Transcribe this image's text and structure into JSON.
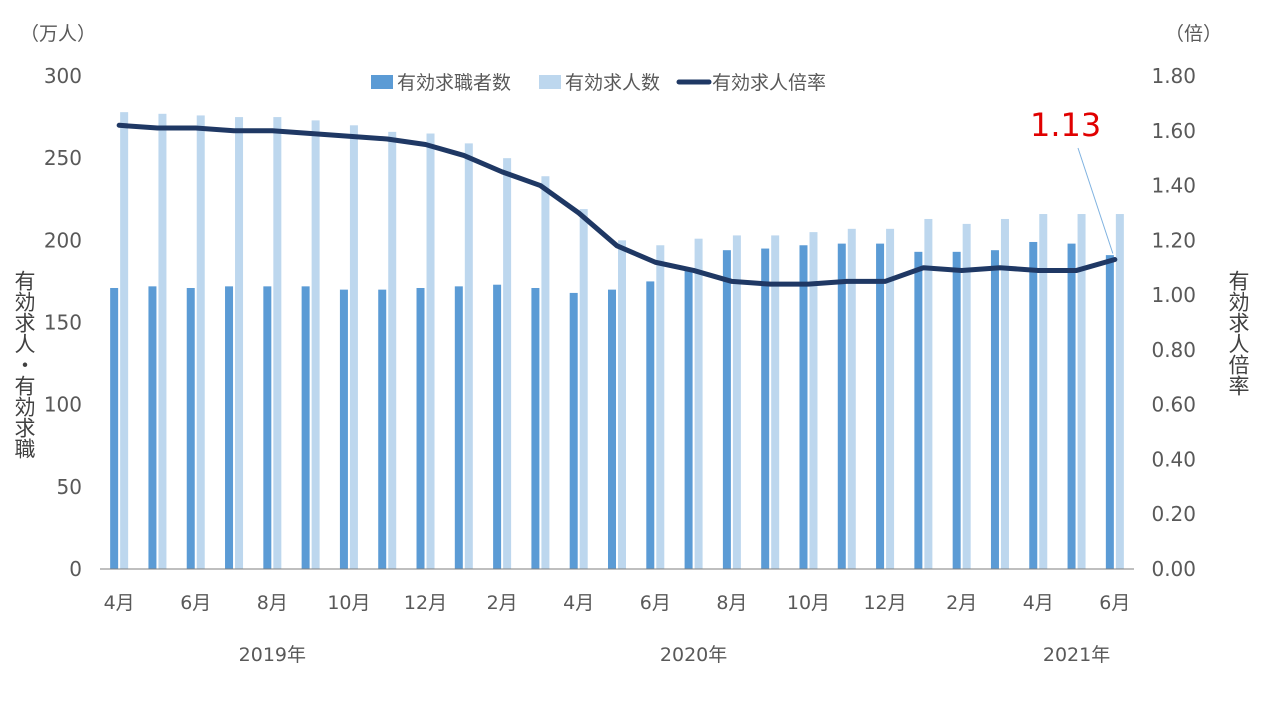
{
  "chart_data": {
    "type": "bar",
    "categories": [
      "4月",
      "5月",
      "6月",
      "7月",
      "8月",
      "9月",
      "10月",
      "11月",
      "12月",
      "1月",
      "2月",
      "3月",
      "4月",
      "5月",
      "6月",
      "7月",
      "8月",
      "9月",
      "10月",
      "11月",
      "12月",
      "1月",
      "2月",
      "3月",
      "4月",
      "5月",
      "6月"
    ],
    "x_tick_labels": [
      "4月",
      "6月",
      "8月",
      "10月",
      "12月",
      "2月",
      "4月",
      "6月",
      "8月",
      "10月",
      "12月",
      "2月",
      "4月",
      "6月"
    ],
    "year_labels": [
      "2019年",
      "2020年",
      "2021年"
    ],
    "series": [
      {
        "name": "有効求職者数",
        "type": "bar",
        "axis": "left",
        "color": "#5b9bd5",
        "values": [
          171,
          172,
          171,
          172,
          172,
          172,
          170,
          170,
          171,
          172,
          173,
          171,
          168,
          170,
          175,
          183,
          194,
          195,
          197,
          198,
          198,
          193,
          193,
          194,
          199,
          198,
          191
        ]
      },
      {
        "name": "有効求人数",
        "type": "bar",
        "axis": "left",
        "color": "#bdd7ee",
        "values": [
          278,
          277,
          276,
          275,
          275,
          273,
          270,
          266,
          265,
          259,
          250,
          239,
          219,
          200,
          197,
          201,
          203,
          203,
          205,
          207,
          207,
          213,
          210,
          213,
          216,
          216,
          216
        ]
      },
      {
        "name": "有効求人倍率",
        "type": "line",
        "axis": "right",
        "color": "#1f3864",
        "values": [
          1.62,
          1.61,
          1.61,
          1.6,
          1.6,
          1.59,
          1.58,
          1.57,
          1.55,
          1.51,
          1.45,
          1.4,
          1.3,
          1.18,
          1.12,
          1.09,
          1.05,
          1.04,
          1.04,
          1.05,
          1.05,
          1.1,
          1.09,
          1.1,
          1.09,
          1.09,
          1.13
        ]
      }
    ],
    "y_left": {
      "label": "有効求人・有効求職",
      "unit": "（万人）",
      "ticks": [
        "300",
        "250",
        "200",
        "150",
        "100",
        "50",
        "0"
      ],
      "ylim": [
        0,
        300
      ]
    },
    "y_right": {
      "label": "有効求人倍率",
      "unit": "（倍）",
      "ticks": [
        "1.80",
        "1.60",
        "1.40",
        "1.20",
        "1.00",
        "0.80",
        "0.60",
        "0.40",
        "0.20",
        "0.00"
      ],
      "ylim": [
        0,
        1.8
      ]
    },
    "annotation": {
      "text": "1.13",
      "color": "#e00000"
    },
    "legend_position": "top-center",
    "grid": false
  }
}
